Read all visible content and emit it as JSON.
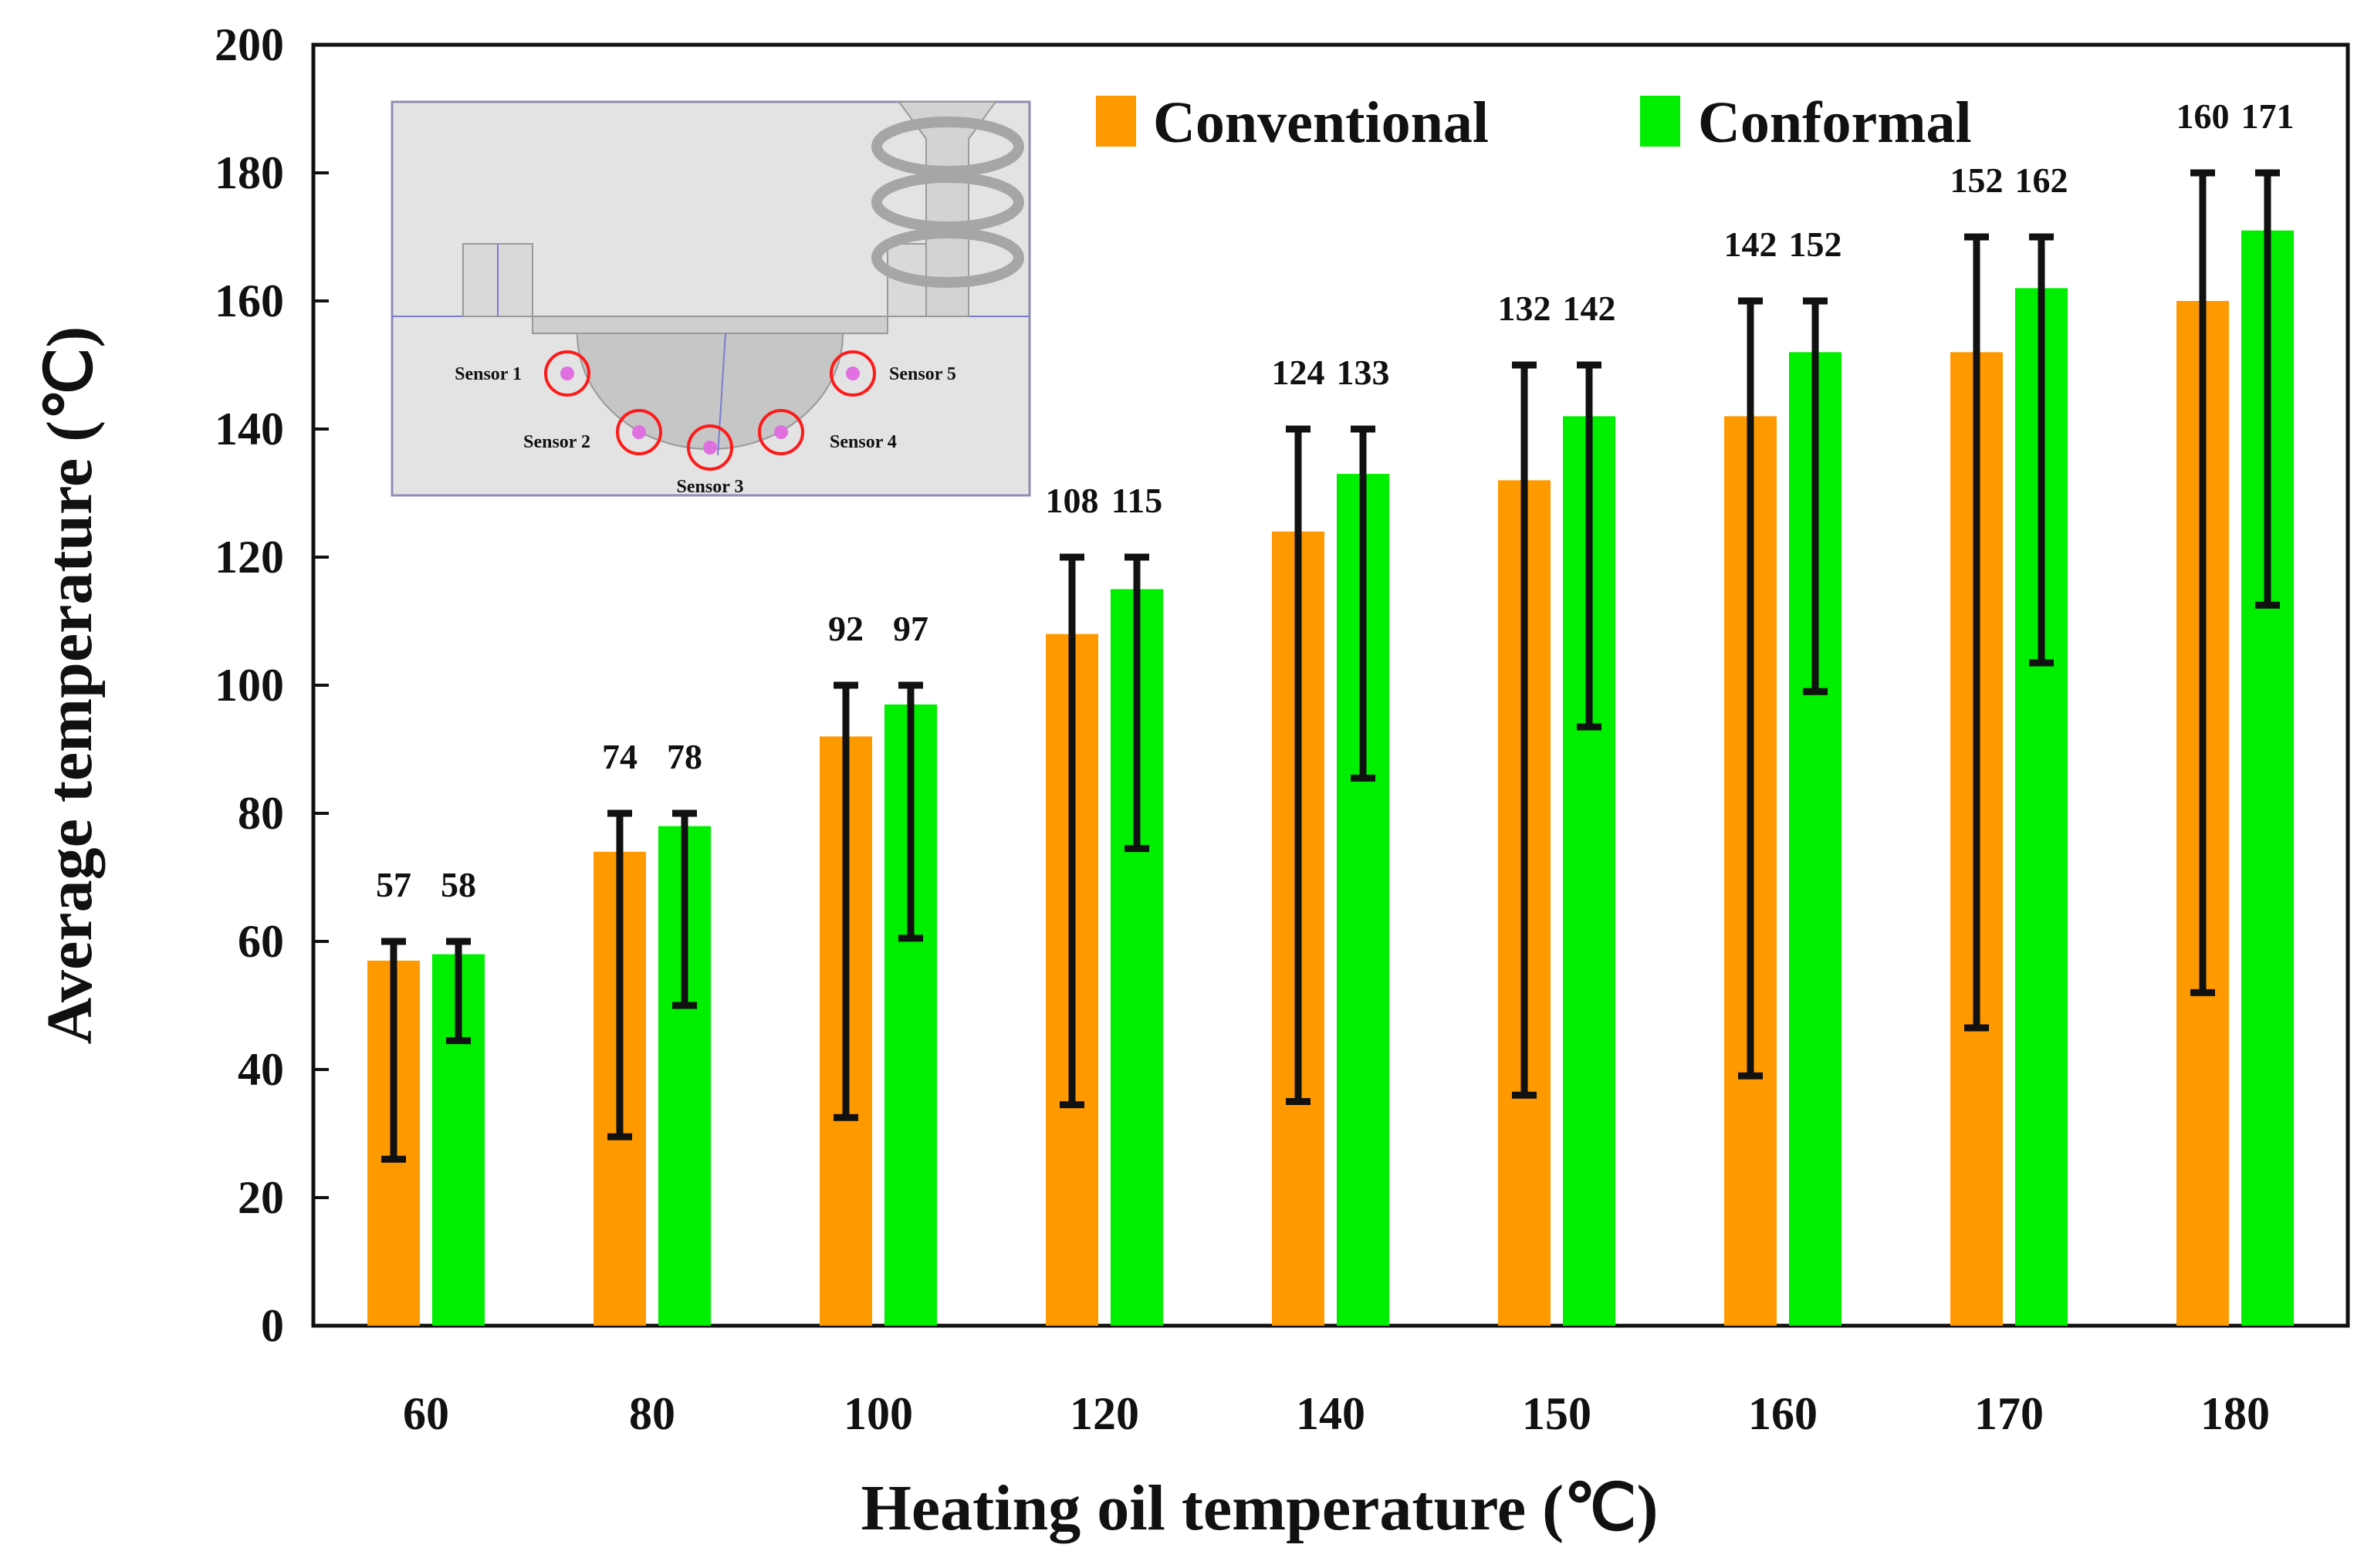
{
  "chart_data": {
    "type": "bar",
    "xlabel": "Heating oil temperature (℃)",
    "ylabel": "Average temperature (℃)",
    "ylim": [
      0,
      200
    ],
    "yticks": [
      0,
      20,
      40,
      60,
      80,
      100,
      120,
      140,
      160,
      180,
      200
    ],
    "categories": [
      "60",
      "80",
      "100",
      "120",
      "140",
      "150",
      "160",
      "170",
      "180"
    ],
    "grid": false,
    "legend_position": "top-right",
    "series": [
      {
        "name": "Conventional",
        "color": "#FF9900",
        "values": [
          57,
          74,
          92,
          108,
          124,
          132,
          142,
          152,
          160
        ],
        "labels": [
          "57",
          "74",
          "92",
          "108",
          "124",
          "132",
          "142",
          "152",
          "160"
        ],
        "error_low": [
          26,
          29.5,
          32.5,
          34.5,
          35,
          36,
          39,
          46.5,
          52
        ],
        "error_high": [
          60,
          80,
          100,
          120,
          140,
          150,
          160,
          170,
          180
        ]
      },
      {
        "name": "Conformal",
        "color": "#00EE00",
        "values": [
          58,
          78,
          97,
          115,
          133,
          142,
          152,
          162,
          171
        ],
        "labels": [
          "58",
          "78",
          "97",
          "115",
          "133",
          "142",
          "152",
          "162",
          "171"
        ],
        "error_low": [
          44.5,
          50,
          60.5,
          74.5,
          85.5,
          93.5,
          99,
          103.5,
          112.5
        ],
        "error_high": [
          60,
          80,
          100,
          120,
          140,
          150,
          160,
          170,
          180
        ]
      }
    ],
    "inset": {
      "description_labels": [
        "Sensor 1",
        "Sensor 2",
        "Sensor 3",
        "Sensor 4",
        "Sensor 5"
      ]
    }
  }
}
